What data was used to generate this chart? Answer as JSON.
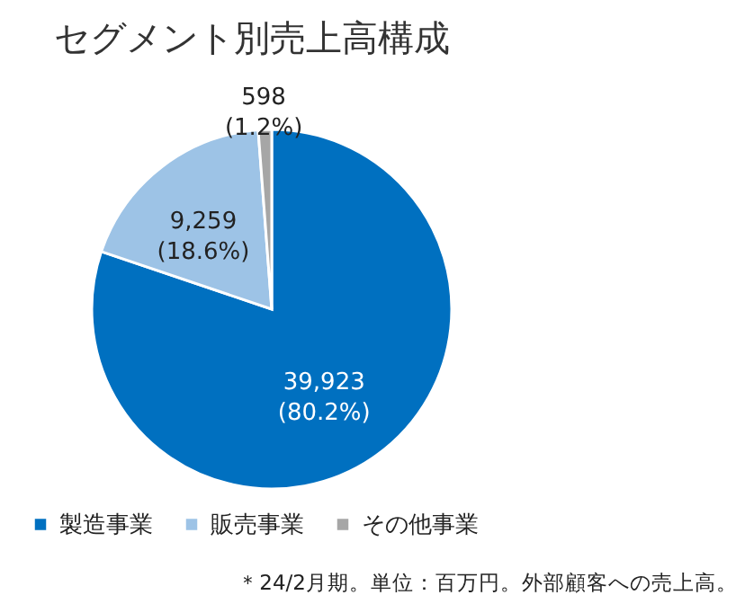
{
  "chart_data": {
    "type": "pie",
    "title": "セグメント別売上高構成",
    "categories": [
      "製造事業",
      "販売事業",
      "その他事業"
    ],
    "values": [
      39923,
      9259,
      598
    ],
    "colors": [
      "#0070c0",
      "#9dc3e6",
      "#a6a6a6"
    ],
    "value_labels": [
      "39,923\n(80.2%)",
      "9,259\n(18.6%)",
      "598\n(1.2%)"
    ],
    "legend": "bottom",
    "annotations": [
      "＊24/2月期。単位：百万円。外部顧客への売上高。"
    ]
  }
}
